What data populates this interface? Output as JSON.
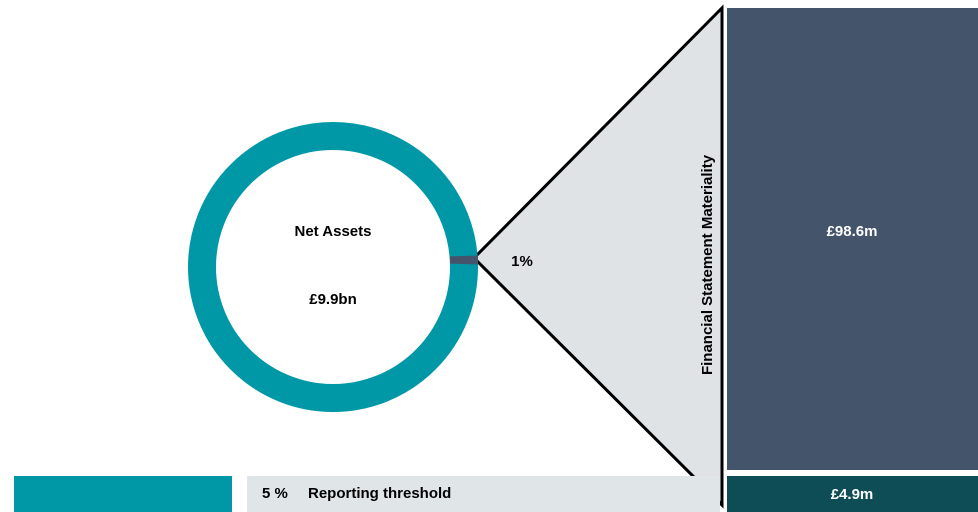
{
  "donut": {
    "title": "Net Assets",
    "value_label": "£9.9bn",
    "segment": {
      "value": 1,
      "label": "1%"
    }
  },
  "materiality": {
    "title": "Financial Statement Materiality",
    "amount": "£98.6m"
  },
  "threshold": {
    "percent": {
      "value": 5,
      "label": "5 %"
    },
    "label": "Reporting threshold",
    "amount": "£4.9m"
  }
}
